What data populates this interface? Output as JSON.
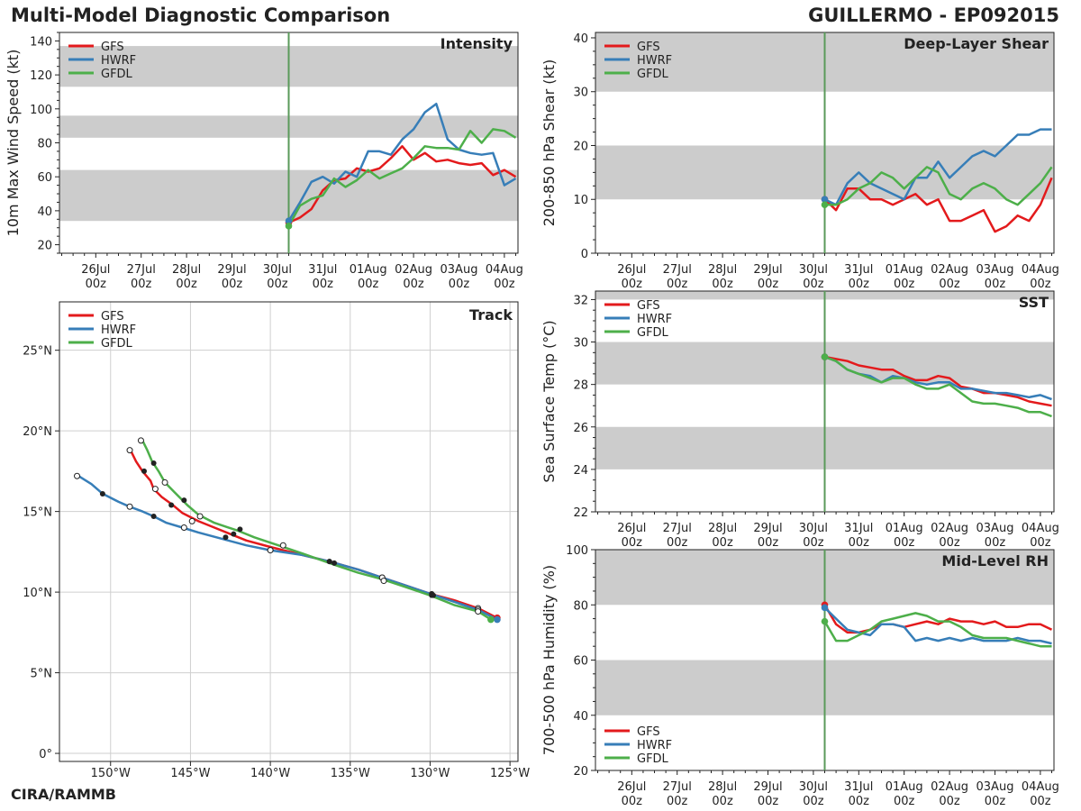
{
  "header": {
    "title": "Multi-Model Diagnostic Comparison",
    "storm": "GUILLERMO - EP092015",
    "credit": "CIRA/RAMMB"
  },
  "colors": {
    "GFS": "#e31a1c",
    "HWRF": "#377eb8",
    "GFDL": "#4daf4a",
    "band": "#cccccc",
    "init_line": "#5a9a5a"
  },
  "chart_data": [
    {
      "id": "intensity",
      "type": "line",
      "title": "Intensity",
      "ylabel": "10m Max Wind Speed (kt)",
      "xlim": [
        -4.8,
        5.3
      ],
      "ylim": [
        15,
        145
      ],
      "yticks": [
        20,
        40,
        60,
        80,
        100,
        120,
        140
      ],
      "bands": [
        [
          34,
          64
        ],
        [
          83,
          96
        ],
        [
          113,
          137
        ]
      ],
      "init_x": 0.25,
      "legend": "top-left",
      "series": [
        {
          "name": "GFS",
          "x": [
            0.25,
            0.5,
            0.75,
            1,
            1.25,
            1.5,
            1.75,
            2,
            2.25,
            2.5,
            2.75,
            3,
            3.25,
            3.5,
            3.75,
            4,
            4.25,
            4.5,
            4.75,
            5,
            5.25
          ],
          "values": [
            33,
            36,
            41,
            52,
            58,
            59,
            65,
            63,
            65,
            71,
            78,
            70,
            74,
            69,
            70,
            68,
            67,
            68,
            61,
            64,
            60
          ]
        },
        {
          "name": "HWRF",
          "x": [
            0.25,
            0.5,
            0.75,
            1,
            1.25,
            1.5,
            1.75,
            2,
            2.25,
            2.5,
            2.75,
            3,
            3.25,
            3.5,
            3.75,
            4,
            4.25,
            4.5,
            4.75,
            5,
            5.25
          ],
          "values": [
            34,
            45,
            57,
            60,
            56,
            63,
            60,
            75,
            75,
            73,
            82,
            88,
            98,
            103,
            82,
            76,
            74,
            73,
            74,
            55,
            59
          ]
        },
        {
          "name": "GFDL",
          "x": [
            0.25,
            0.5,
            0.75,
            1,
            1.25,
            1.5,
            1.75,
            2,
            2.25,
            2.5,
            2.75,
            3,
            3.25,
            3.5,
            3.75,
            4,
            4.25,
            4.5,
            4.75,
            5,
            5.25
          ],
          "values": [
            31,
            43,
            47,
            49,
            59,
            54,
            58,
            64,
            59,
            62,
            65,
            71,
            78,
            77,
            77,
            76,
            87,
            80,
            88,
            87,
            83
          ]
        }
      ]
    },
    {
      "id": "shear",
      "type": "line",
      "title": "Deep-Layer Shear",
      "ylabel": "200-850 hPa Shear (kt)",
      "xlim": [
        -4.8,
        5.3
      ],
      "ylim": [
        0,
        41
      ],
      "yticks": [
        0,
        10,
        20,
        30,
        40
      ],
      "bands": [
        [
          10,
          20
        ],
        [
          30,
          41
        ]
      ],
      "init_x": 0.25,
      "legend": "top-left",
      "series": [
        {
          "name": "GFS",
          "x": [
            0.25,
            0.5,
            0.75,
            1,
            1.25,
            1.5,
            1.75,
            2,
            2.25,
            2.5,
            2.75,
            3,
            3.25,
            3.5,
            3.75,
            4,
            4.25,
            4.5,
            4.75,
            5,
            5.25
          ],
          "values": [
            10,
            8,
            12,
            12,
            10,
            10,
            9,
            10,
            11,
            9,
            10,
            6,
            6,
            7,
            8,
            4,
            5,
            7,
            6,
            9,
            14
          ]
        },
        {
          "name": "HWRF",
          "x": [
            0.25,
            0.5,
            0.75,
            1,
            1.25,
            1.5,
            1.75,
            2,
            2.25,
            2.5,
            2.75,
            3,
            3.25,
            3.5,
            3.75,
            4,
            4.25,
            4.5,
            4.75,
            5,
            5.25
          ],
          "values": [
            10,
            9,
            13,
            15,
            13,
            12,
            11,
            10,
            14,
            14,
            17,
            14,
            16,
            18,
            19,
            18,
            20,
            22,
            22,
            23,
            23
          ]
        },
        {
          "name": "GFDL",
          "x": [
            0.25,
            0.5,
            0.75,
            1,
            1.25,
            1.5,
            1.75,
            2,
            2.25,
            2.5,
            2.75,
            3,
            3.25,
            3.5,
            3.75,
            4,
            4.25,
            4.5,
            4.75,
            5,
            5.25
          ],
          "values": [
            9,
            9,
            10,
            12,
            13,
            15,
            14,
            12,
            14,
            16,
            15,
            11,
            10,
            12,
            13,
            12,
            10,
            9,
            11,
            13,
            16
          ]
        }
      ]
    },
    {
      "id": "sst",
      "type": "line",
      "title": "SST",
      "ylabel": "Sea Surface Temp (°C)",
      "xlim": [
        -4.8,
        5.3
      ],
      "ylim": [
        22,
        32.4
      ],
      "yticks": [
        22,
        24,
        26,
        28,
        30,
        32
      ],
      "bands": [
        [
          24,
          26
        ],
        [
          28,
          30
        ],
        [
          32,
          32.4
        ]
      ],
      "init_x": 0.25,
      "legend": "top-left",
      "series": [
        {
          "name": "GFS",
          "x": [
            0.25,
            0.5,
            0.75,
            1,
            1.25,
            1.5,
            1.75,
            2,
            2.25,
            2.5,
            2.75,
            3,
            3.25,
            3.5,
            3.75,
            4,
            4.25,
            4.5,
            4.75,
            5,
            5.25
          ],
          "values": [
            29.3,
            29.2,
            29.1,
            28.9,
            28.8,
            28.7,
            28.7,
            28.4,
            28.2,
            28.2,
            28.4,
            28.3,
            27.9,
            27.8,
            27.6,
            27.6,
            27.5,
            27.4,
            27.2,
            27.1,
            27.0
          ]
        },
        {
          "name": "HWRF",
          "x": [
            0.25,
            0.5,
            0.75,
            1,
            1.25,
            1.5,
            1.75,
            2,
            2.25,
            2.5,
            2.75,
            3,
            3.25,
            3.5,
            3.75,
            4,
            4.25,
            4.5,
            4.75,
            5,
            5.25
          ],
          "values": [
            29.3,
            29.1,
            28.7,
            28.5,
            28.4,
            28.1,
            28.4,
            28.3,
            28.1,
            28.0,
            28.1,
            28.1,
            27.8,
            27.8,
            27.7,
            27.6,
            27.6,
            27.5,
            27.4,
            27.5,
            27.3
          ]
        },
        {
          "name": "GFDL",
          "x": [
            0.25,
            0.5,
            0.75,
            1,
            1.25,
            1.5,
            1.75,
            2,
            2.25,
            2.5,
            2.75,
            3,
            3.25,
            3.5,
            3.75,
            4,
            4.25,
            4.5,
            4.75,
            5,
            5.25
          ],
          "values": [
            29.3,
            29.1,
            28.7,
            28.5,
            28.3,
            28.1,
            28.3,
            28.3,
            28.0,
            27.8,
            27.8,
            28.0,
            27.6,
            27.2,
            27.1,
            27.1,
            27.0,
            26.9,
            26.7,
            26.7,
            26.5
          ]
        }
      ]
    },
    {
      "id": "rh",
      "type": "line",
      "title": "Mid-Level RH",
      "ylabel": "700-500 hPa Humidity (%)",
      "xlim": [
        -4.8,
        5.3
      ],
      "ylim": [
        20,
        100
      ],
      "yticks": [
        20,
        40,
        60,
        80,
        100
      ],
      "bands": [
        [
          40,
          60
        ],
        [
          80,
          100
        ]
      ],
      "init_x": 0.25,
      "legend": "bottom-left",
      "series": [
        {
          "name": "GFS",
          "x": [
            0.25,
            0.5,
            0.75,
            1,
            1.25,
            1.5,
            1.75,
            2,
            2.25,
            2.5,
            2.75,
            3,
            3.25,
            3.5,
            3.75,
            4,
            4.25,
            4.5,
            4.75,
            5,
            5.25
          ],
          "values": [
            80,
            73,
            70,
            70,
            71,
            73,
            73,
            72,
            73,
            74,
            73,
            75,
            74,
            74,
            73,
            74,
            72,
            72,
            73,
            73,
            71
          ]
        },
        {
          "name": "HWRF",
          "x": [
            0.25,
            0.5,
            0.75,
            1,
            1.25,
            1.5,
            1.75,
            2,
            2.25,
            2.5,
            2.75,
            3,
            3.25,
            3.5,
            3.75,
            4,
            4.25,
            4.5,
            4.75,
            5,
            5.25
          ],
          "values": [
            79,
            75,
            71,
            70,
            69,
            73,
            73,
            72,
            67,
            68,
            67,
            68,
            67,
            68,
            67,
            67,
            67,
            68,
            67,
            67,
            66
          ]
        },
        {
          "name": "GFDL",
          "x": [
            0.25,
            0.5,
            0.75,
            1,
            1.25,
            1.5,
            1.75,
            2,
            2.25,
            2.5,
            2.75,
            3,
            3.25,
            3.5,
            3.75,
            4,
            4.25,
            4.5,
            4.75,
            5,
            5.25
          ],
          "values": [
            74,
            67,
            67,
            69,
            71,
            74,
            75,
            76,
            77,
            76,
            74,
            74,
            72,
            69,
            68,
            68,
            68,
            67,
            66,
            65,
            65
          ]
        }
      ]
    },
    {
      "id": "track",
      "type": "scatter",
      "title": "Track",
      "xlim": [
        -153.2,
        -124.5
      ],
      "ylim": [
        -0.5,
        28
      ],
      "xticks": [
        -150,
        -145,
        -140,
        -135,
        -130,
        -125
      ],
      "xticklabels": [
        "150°W",
        "145°W",
        "140°W",
        "135°W",
        "130°W",
        "125°W"
      ],
      "yticks": [
        0,
        5,
        10,
        15,
        20,
        25
      ],
      "yticklabels": [
        "0°",
        "5°N",
        "10°N",
        "15°N",
        "20°N",
        "25°N"
      ],
      "legend": "top-left",
      "series": [
        {
          "name": "GFS",
          "lon": [
            -125.8,
            -127.0,
            -128.5,
            -130.0,
            -131.5,
            -133.0,
            -134.5,
            -136.3,
            -138.0,
            -140.0,
            -141.5,
            -142.5,
            -143.5,
            -144.5,
            -145.5,
            -146.1,
            -146.8,
            -147.3,
            -147.5,
            -148.0,
            -148.4,
            -148.7
          ],
          "lat": [
            8.4,
            9.0,
            9.5,
            9.9,
            10.4,
            10.9,
            11.4,
            11.9,
            12.3,
            12.8,
            13.2,
            13.6,
            14.0,
            14.4,
            14.9,
            15.4,
            15.9,
            16.4,
            16.9,
            17.5,
            18.1,
            18.7
          ],
          "open": [
            [
              -127.0,
              9.0
            ],
            [
              -133.0,
              10.9
            ],
            [
              -140.0,
              12.6
            ],
            [
              -144.9,
              14.4
            ],
            [
              -147.2,
              16.4
            ],
            [
              -148.8,
              18.8
            ]
          ],
          "filled": [
            [
              -129.9,
              9.9
            ],
            [
              -136.3,
              11.9
            ],
            [
              -142.3,
              13.6
            ],
            [
              -146.2,
              15.4
            ],
            [
              -147.9,
              17.5
            ]
          ]
        },
        {
          "name": "HWRF",
          "lon": [
            -125.8,
            -127.0,
            -128.5,
            -130.0,
            -131.5,
            -133.0,
            -134.5,
            -136.3,
            -138.0,
            -140.0,
            -141.5,
            -143.0,
            -144.5,
            -145.5,
            -146.5,
            -147.3,
            -148.0,
            -148.8,
            -149.5,
            -150.5,
            -151.2,
            -152.0
          ],
          "lat": [
            8.3,
            8.9,
            9.4,
            9.9,
            10.4,
            10.9,
            11.4,
            11.9,
            12.3,
            12.6,
            12.9,
            13.3,
            13.7,
            14.0,
            14.3,
            14.7,
            15.0,
            15.3,
            15.6,
            16.1,
            16.7,
            17.2
          ],
          "open": [
            [
              -127.0,
              8.9
            ],
            [
              -133.0,
              10.9
            ],
            [
              -140.0,
              12.6
            ],
            [
              -145.4,
              14.0
            ],
            [
              -148.8,
              15.3
            ],
            [
              -152.1,
              17.2
            ]
          ],
          "filled": [
            [
              -129.9,
              9.8
            ],
            [
              -136.3,
              11.9
            ],
            [
              -142.8,
              13.4
            ],
            [
              -147.3,
              14.7
            ],
            [
              -150.5,
              16.1
            ]
          ]
        },
        {
          "name": "GFDL",
          "lon": [
            -126.2,
            -127.0,
            -128.5,
            -130.0,
            -131.5,
            -133.0,
            -134.5,
            -136.0,
            -138.0,
            -139.5,
            -141.0,
            -142.0,
            -143.5,
            -144.5,
            -145.2,
            -146.0,
            -146.6,
            -147.0,
            -147.4,
            -147.7,
            -148.0
          ],
          "lat": [
            8.3,
            8.8,
            9.2,
            9.8,
            10.3,
            10.8,
            11.2,
            11.7,
            12.4,
            12.9,
            13.4,
            13.8,
            14.3,
            14.8,
            15.4,
            16.2,
            16.8,
            17.5,
            18.1,
            18.8,
            19.4
          ],
          "open": [
            [
              -127.0,
              8.8
            ],
            [
              -132.9,
              10.7
            ],
            [
              -139.2,
              12.9
            ],
            [
              -144.4,
              14.7
            ],
            [
              -146.6,
              16.8
            ],
            [
              -148.1,
              19.4
            ]
          ],
          "filled": [
            [
              -129.8,
              9.8
            ],
            [
              -136.0,
              11.8
            ],
            [
              -141.9,
              13.9
            ],
            [
              -145.4,
              15.7
            ],
            [
              -147.3,
              18.0
            ]
          ]
        }
      ]
    }
  ],
  "time_axis": {
    "ticks": [
      -4,
      -3,
      -2,
      -1,
      0,
      1,
      2,
      3,
      4,
      5
    ],
    "labels": [
      "26Jul\n00z",
      "27Jul\n00z",
      "28Jul\n00z",
      "29Jul\n00z",
      "30Jul\n00z",
      "31Jul\n00z",
      "01Aug\n00z",
      "02Aug\n00z",
      "03Aug\n00z",
      "04Aug\n00z"
    ]
  }
}
